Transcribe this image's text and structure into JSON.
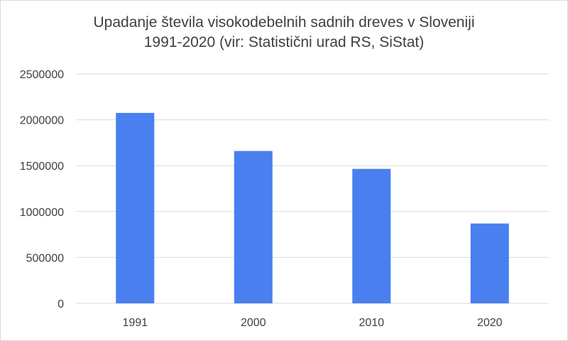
{
  "chart_data": {
    "type": "bar",
    "title_lines": [
      "Upadanje števila visokodebelnih sadnih dreves v Sloveniji",
      "1991-2020 (vir: Statistični urad RS, SiStat)"
    ],
    "categories": [
      "1991",
      "2000",
      "2010",
      "2020"
    ],
    "values": [
      2075000,
      1660000,
      1465000,
      870000
    ],
    "ylim": [
      0,
      2500000
    ],
    "yticks": [
      "0",
      "500000",
      "1000000",
      "1500000",
      "2000000",
      "2500000"
    ],
    "grid": true,
    "bar_color": "#4a7ff0",
    "grid_color": "#d9d9d9",
    "xlabel": "",
    "ylabel": ""
  }
}
